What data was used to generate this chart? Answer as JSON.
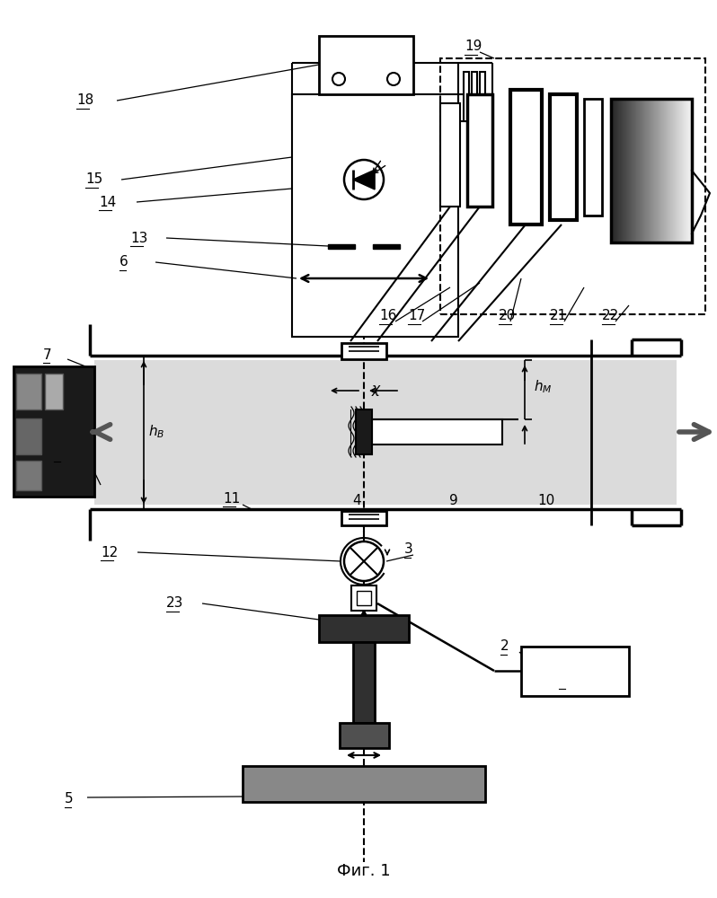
{
  "title": "Фиг. 1",
  "background": "#ffffff",
  "fig_width": 7.98,
  "fig_height": 10.0
}
